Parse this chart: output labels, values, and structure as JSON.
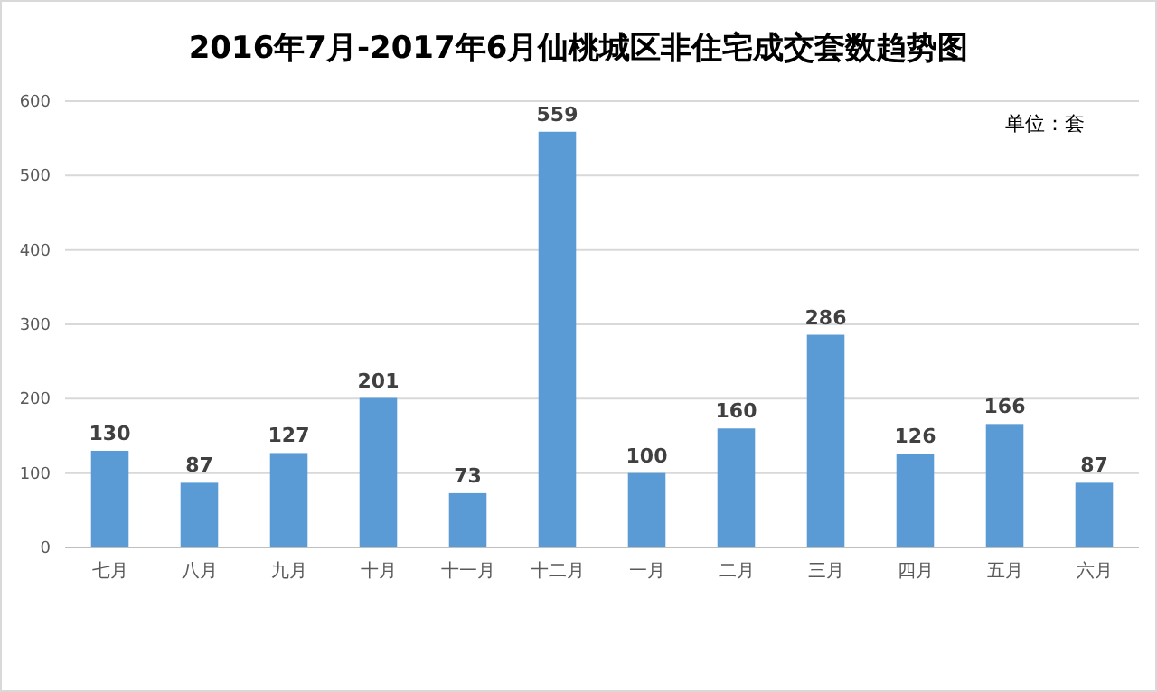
{
  "chart_data": {
    "type": "bar",
    "title": "2016年7月-2017年6月仙桃城区非住宅成交套数趋势图",
    "categories": [
      "七月",
      "八月",
      "九月",
      "十月",
      "十一月",
      "十二月",
      "一月",
      "二月",
      "三月",
      "四月",
      "五月",
      "六月"
    ],
    "values": [
      130,
      87,
      127,
      201,
      73,
      559,
      100,
      160,
      286,
      126,
      166,
      87
    ],
    "color": "#5b9bd5",
    "data_labels": true,
    "ylim": [
      0,
      600
    ],
    "yticks": [
      0,
      100,
      200,
      300,
      400,
      500,
      600
    ],
    "grid": "y",
    "annotations": [
      "单位：套"
    ]
  }
}
